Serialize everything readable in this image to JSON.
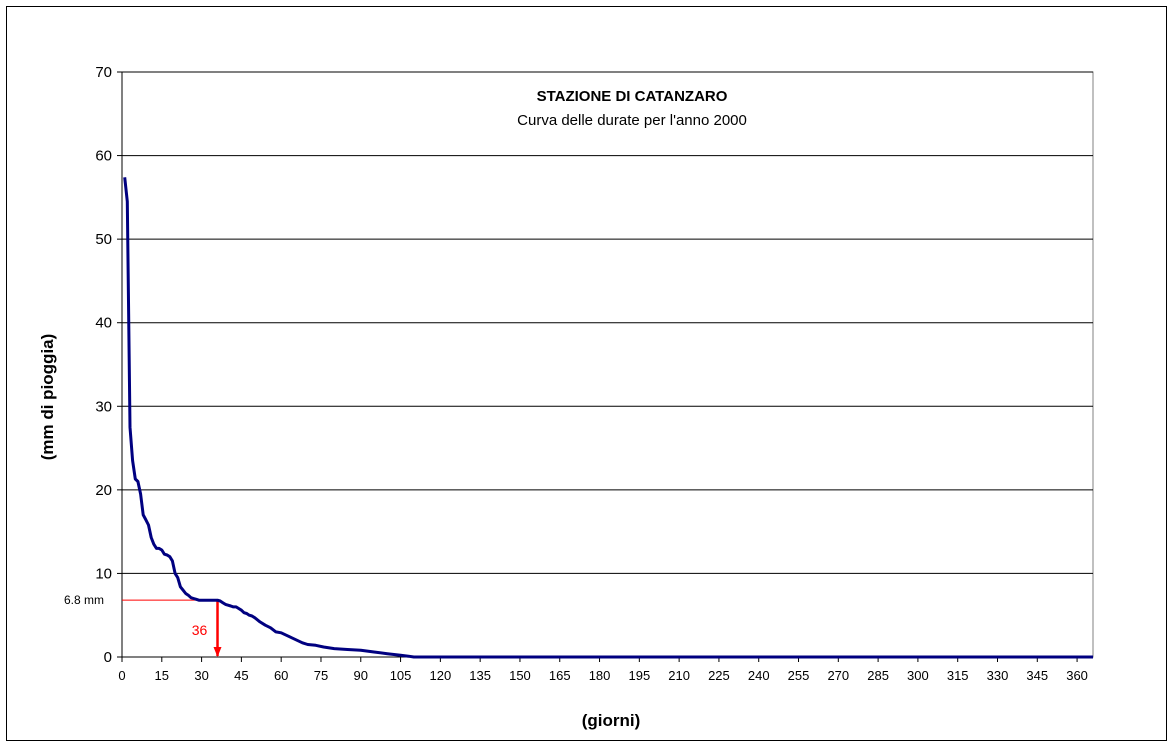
{
  "chart_data": {
    "type": "line",
    "title": "STAZIONE DI CATANZARO",
    "subtitle": "Curva delle durate per l'anno 2000",
    "xlabel": "(giorni)",
    "ylabel": "(mm di pioggia)",
    "xlim": [
      0,
      366
    ],
    "ylim": [
      0,
      70
    ],
    "grid": "horizontal",
    "y_ticks": [
      "0",
      "10",
      "20",
      "30",
      "40",
      "50",
      "60",
      "70"
    ],
    "x_ticks": [
      "0",
      "15",
      "30",
      "45",
      "60",
      "75",
      "90",
      "105",
      "120",
      "135",
      "150",
      "165",
      "180",
      "195",
      "210",
      "225",
      "240",
      "255",
      "270",
      "285",
      "300",
      "315",
      "330",
      "345",
      "360"
    ],
    "series": [
      {
        "color": "#000080",
        "x": [
          1,
          2,
          3,
          4,
          5,
          6,
          7,
          8,
          9,
          10,
          11,
          12,
          13,
          14,
          15,
          16,
          17,
          18,
          19,
          20,
          21,
          22,
          23,
          24,
          25,
          26,
          27,
          28,
          29,
          30,
          31,
          32,
          33,
          34,
          35,
          36,
          37,
          38,
          39,
          40,
          41,
          42,
          43,
          44,
          45,
          46,
          47,
          48,
          49,
          50,
          52,
          54,
          56,
          58,
          60,
          62,
          64,
          66,
          68,
          70,
          73,
          76,
          80,
          85,
          90,
          95,
          100,
          105,
          108,
          110,
          366
        ],
        "y": [
          57.4,
          54.5,
          27.5,
          23.5,
          21.3,
          21.0,
          19.5,
          17.0,
          16.4,
          15.8,
          14.3,
          13.5,
          13.0,
          13.0,
          12.8,
          12.3,
          12.2,
          12.0,
          11.5,
          10.0,
          9.5,
          8.4,
          8.0,
          7.6,
          7.4,
          7.1,
          7.0,
          6.9,
          6.8,
          6.8,
          6.8,
          6.8,
          6.8,
          6.8,
          6.8,
          6.8,
          6.7,
          6.5,
          6.3,
          6.2,
          6.1,
          6.0,
          6.0,
          5.8,
          5.6,
          5.3,
          5.2,
          5.0,
          4.9,
          4.7,
          4.2,
          3.8,
          3.5,
          3.0,
          2.9,
          2.6,
          2.3,
          2.0,
          1.7,
          1.5,
          1.4,
          1.2,
          1.0,
          0.9,
          0.8,
          0.6,
          0.4,
          0.2,
          0.1,
          0.0,
          0.0
        ]
      }
    ],
    "annotations": {
      "threshold_label": "6.8 mm",
      "threshold_value": 6.8,
      "duration_label": "36",
      "duration_value": 36,
      "color": "#ff0000"
    }
  }
}
